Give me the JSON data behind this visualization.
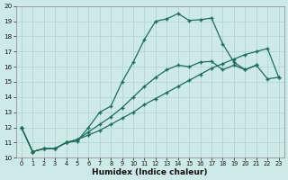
{
  "xlabel": "Humidex (Indice chaleur)",
  "bg_color": "#ceeae7",
  "line_color": "#1e6b5e",
  "grid_color": "#aed4d0",
  "xlim": [
    -0.5,
    23.5
  ],
  "ylim": [
    10,
    20
  ],
  "xticks": [
    0,
    1,
    2,
    3,
    4,
    5,
    6,
    7,
    8,
    9,
    10,
    11,
    12,
    13,
    14,
    15,
    16,
    17,
    18,
    19,
    20,
    21,
    22,
    23
  ],
  "yticks": [
    10,
    11,
    12,
    13,
    14,
    15,
    16,
    17,
    18,
    19,
    20
  ],
  "line1_x": [
    0,
    1,
    2,
    3,
    4,
    5,
    6,
    7,
    8,
    9,
    10,
    11,
    12,
    13,
    14,
    15,
    16,
    17,
    18,
    19,
    20,
    21
  ],
  "line1_y": [
    12.0,
    10.4,
    10.6,
    10.6,
    11.0,
    11.1,
    12.0,
    13.0,
    13.4,
    15.0,
    16.3,
    17.8,
    19.0,
    19.15,
    19.5,
    19.05,
    19.1,
    19.2,
    17.5,
    16.3,
    15.8,
    16.1
  ],
  "line2_x": [
    0,
    1,
    2,
    3,
    4,
    5,
    6,
    7,
    8,
    9,
    10,
    11,
    12,
    13,
    14,
    15,
    16,
    17,
    18,
    19,
    20,
    21,
    22,
    23
  ],
  "line2_y": [
    12.0,
    10.4,
    10.6,
    10.6,
    11.0,
    11.2,
    11.7,
    12.2,
    12.7,
    13.3,
    14.0,
    14.7,
    15.3,
    15.8,
    16.1,
    16.0,
    16.3,
    16.35,
    15.8,
    16.1,
    15.8,
    16.1,
    15.2,
    15.3
  ],
  "line3_x": [
    0,
    1,
    2,
    3,
    4,
    5,
    6,
    7,
    8,
    9,
    10,
    11,
    12,
    13,
    14,
    15,
    16,
    17,
    18,
    19,
    20,
    21,
    22,
    23
  ],
  "line3_y": [
    12.0,
    10.4,
    10.6,
    10.6,
    11.0,
    11.2,
    11.5,
    11.8,
    12.2,
    12.6,
    13.0,
    13.5,
    13.9,
    14.3,
    14.7,
    15.1,
    15.5,
    15.9,
    16.2,
    16.5,
    16.8,
    17.0,
    17.2,
    15.3
  ]
}
